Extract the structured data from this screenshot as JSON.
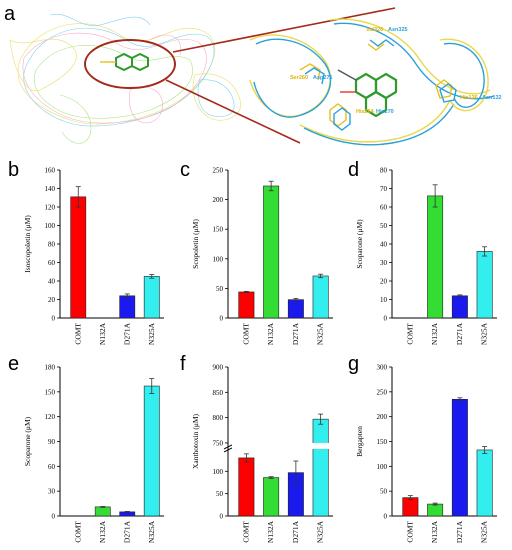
{
  "panel_a": {
    "letter": "a",
    "residue_labels": [
      {
        "text": "Val326",
        "color": "#e0b000"
      },
      {
        "text": "Asn325",
        "color": "#2aa0d8"
      },
      {
        "text": "Ser260",
        "color": "#e0b000"
      },
      {
        "text": "Asp271",
        "color": "#2aa0d8"
      },
      {
        "text": "His264",
        "color": "#e0b000"
      },
      {
        "text": "His270",
        "color": "#2aa0d8"
      },
      {
        "text": "His126",
        "color": "#e0b000"
      },
      {
        "text": "Asn132",
        "color": "#2aa0d8"
      }
    ]
  },
  "colors": {
    "COMT": "#ff0000",
    "N132A": "#33dd33",
    "D271A": "#1a1aee",
    "N325A": "#33eeee",
    "callout": "#a52a1a"
  },
  "chart_data": [
    {
      "panel": "b",
      "type": "bar",
      "categories": [
        "COMT",
        "N132A",
        "D271A",
        "N325A"
      ],
      "values": [
        131,
        0,
        24,
        45
      ],
      "errors": [
        11,
        0,
        2,
        2
      ],
      "ylabel": "Isoscopoletin (μM)",
      "ylim": [
        0,
        160
      ],
      "yticks": [
        0,
        20,
        40,
        60,
        80,
        100,
        120,
        140,
        160
      ]
    },
    {
      "panel": "c",
      "type": "bar",
      "categories": [
        "COMT",
        "N132A",
        "D271A",
        "N325A"
      ],
      "values": [
        44,
        223,
        31,
        71
      ],
      "errors": [
        1,
        8,
        2,
        3
      ],
      "ylabel": "Scopoletin (μM)",
      "ylim": [
        0,
        250
      ],
      "yticks": [
        0,
        50,
        100,
        150,
        200,
        250
      ]
    },
    {
      "panel": "d",
      "type": "bar",
      "categories": [
        "COMT",
        "N132A",
        "D271A",
        "N325A"
      ],
      "values": [
        0,
        66,
        12,
        36
      ],
      "errors": [
        0,
        6,
        0.5,
        2.5
      ],
      "ylabel": "Scoparone (μM)",
      "ylim": [
        0,
        80
      ],
      "yticks": [
        0,
        10,
        20,
        30,
        40,
        50,
        60,
        70,
        80
      ]
    },
    {
      "panel": "e",
      "type": "bar",
      "categories": [
        "COMT",
        "N132A",
        "D271A",
        "N325A"
      ],
      "values": [
        0,
        11,
        5,
        157
      ],
      "errors": [
        0,
        0.5,
        0.5,
        9
      ],
      "ylabel": "Scoparone (μM)",
      "ylim": [
        0,
        180
      ],
      "yticks": [
        0,
        30,
        60,
        90,
        120,
        150,
        180
      ]
    },
    {
      "panel": "f",
      "type": "bar",
      "categories": [
        "COMT",
        "N132A",
        "D271A",
        "N325A"
      ],
      "values": [
        130,
        86,
        97,
        797
      ],
      "errors": [
        9,
        2,
        26,
        10
      ],
      "ylabel": "Xanthotoxin (μM)",
      "axis_break": true,
      "ylim_lower": [
        0,
        150
      ],
      "ylim_upper": [
        750,
        900
      ],
      "yticks_lower": [
        0,
        50,
        100
      ],
      "yticks_upper": [
        750,
        800,
        850,
        900
      ]
    },
    {
      "panel": "g",
      "type": "bar",
      "categories": [
        "COMT",
        "N132A",
        "D271A",
        "N325A"
      ],
      "values": [
        37,
        24,
        235,
        133
      ],
      "errors": [
        4,
        2,
        3,
        7
      ],
      "ylabel": "Bergapten",
      "ylim": [
        0,
        300
      ],
      "yticks": [
        0,
        50,
        100,
        150,
        200,
        250,
        300
      ]
    }
  ]
}
